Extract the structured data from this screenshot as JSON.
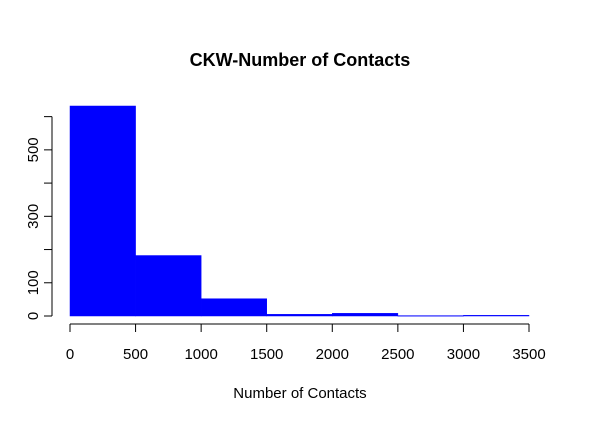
{
  "chart_data": {
    "type": "histogram",
    "title": "CKW-Number of Contacts",
    "xlabel": "Number of Contacts",
    "ylabel": "",
    "bins": [
      {
        "x0": 0,
        "x1": 500,
        "count": 632
      },
      {
        "x0": 500,
        "x1": 1000,
        "count": 182
      },
      {
        "x0": 1000,
        "x1": 1500,
        "count": 52
      },
      {
        "x0": 1500,
        "x1": 2000,
        "count": 5
      },
      {
        "x0": 2000,
        "x1": 2500,
        "count": 8
      },
      {
        "x0": 2500,
        "x1": 3000,
        "count": 1
      },
      {
        "x0": 3000,
        "x1": 3500,
        "count": 2
      }
    ],
    "xlim": [
      0,
      3500
    ],
    "ylim": [
      0,
      632
    ],
    "x_ticks": [
      0,
      500,
      1000,
      1500,
      2000,
      2500,
      3000,
      3500
    ],
    "y_ticks": [
      0,
      100,
      200,
      300,
      400,
      500,
      600
    ],
    "y_tick_labels": [
      "0",
      "100",
      "",
      "300",
      "",
      "500",
      ""
    ],
    "bar_color": "#0000ff",
    "grid": false,
    "legend": "none"
  }
}
